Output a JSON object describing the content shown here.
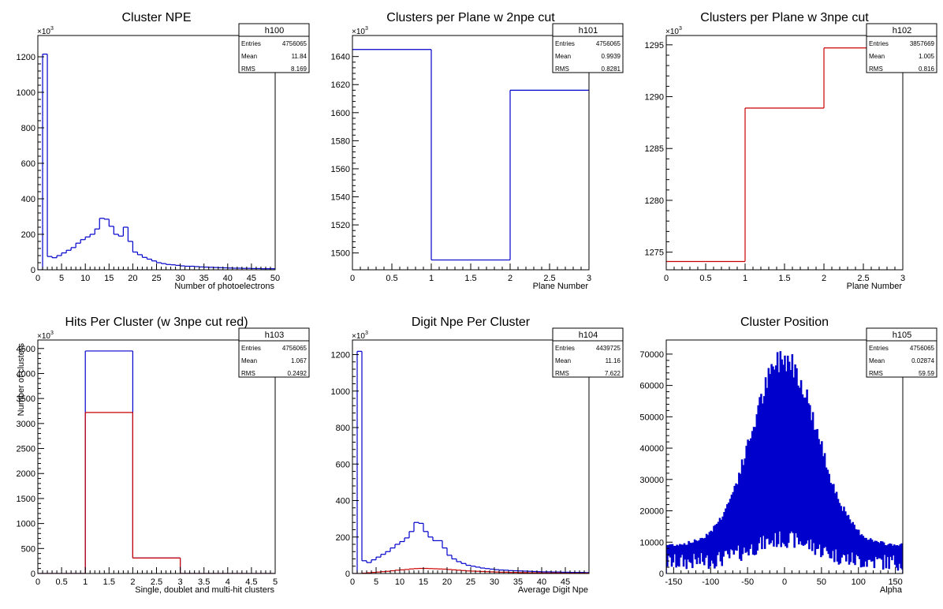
{
  "chart_data": [
    {
      "type": "bar",
      "title": "Cluster NPE",
      "xlabel": "Number of photoelectrons",
      "ylabel": "",
      "y_multiplier": "×10³",
      "xlim": [
        0,
        50
      ],
      "ylim": [
        0,
        1320
      ],
      "xticks": [
        0,
        5,
        10,
        15,
        20,
        25,
        30,
        35,
        40,
        45,
        50
      ],
      "yticks": [
        0,
        200,
        400,
        600,
        800,
        1000,
        1200
      ],
      "stats": {
        "name": "h100",
        "entries": "4756065",
        "mean": "11.84",
        "rms": "8.169"
      },
      "series": [
        {
          "color": "#0000cc",
          "bin_edges": [
            0,
            1,
            2,
            3,
            4,
            5,
            6,
            7,
            8,
            9,
            10,
            11,
            12,
            13,
            14,
            15,
            16,
            17,
            18,
            19,
            20,
            21,
            22,
            23,
            24,
            25,
            26,
            27,
            28,
            29,
            30,
            31,
            32,
            33,
            34,
            35,
            36,
            37,
            38,
            39,
            40,
            41,
            42,
            43,
            44,
            45,
            46,
            47,
            48,
            49,
            50
          ],
          "values": [
            0,
            1215,
            75,
            68,
            80,
            95,
            110,
            125,
            150,
            170,
            185,
            200,
            230,
            290,
            285,
            245,
            200,
            190,
            240,
            160,
            100,
            85,
            70,
            60,
            50,
            40,
            35,
            30,
            28,
            25,
            22,
            20,
            20,
            18,
            16,
            15,
            14,
            13,
            12,
            11,
            10,
            9,
            9,
            8,
            8,
            7,
            7,
            6,
            6,
            6
          ]
        }
      ]
    },
    {
      "type": "bar",
      "title": "Clusters per Plane w 2npe cut",
      "xlabel": "Plane Number",
      "ylabel": "",
      "y_multiplier": "×10³",
      "xlim": [
        0,
        3
      ],
      "ylim": [
        1488,
        1655
      ],
      "xticks": [
        0,
        0.5,
        1,
        1.5,
        2,
        2.5,
        3
      ],
      "yticks": [
        1500,
        1520,
        1540,
        1560,
        1580,
        1600,
        1620,
        1640
      ],
      "stats": {
        "name": "h101",
        "entries": "4756065",
        "mean": "0.9939",
        "rms": "0.8281"
      },
      "series": [
        {
          "color": "#0000cc",
          "bin_edges": [
            0,
            1,
            2,
            3
          ],
          "values": [
            1645,
            1495,
            1616
          ]
        }
      ]
    },
    {
      "type": "bar",
      "title": "Clusters per Plane w 3npe cut",
      "xlabel": "Plane Number",
      "ylabel": "",
      "y_multiplier": "×10³",
      "xlim": [
        0,
        3
      ],
      "ylim": [
        1273.3,
        1295.9
      ],
      "xticks": [
        0,
        0.5,
        1,
        1.5,
        2,
        2.5,
        3
      ],
      "yticks": [
        1275,
        1280,
        1285,
        1290,
        1295
      ],
      "stats": {
        "name": "h102",
        "entries": "3857669",
        "mean": "1.005",
        "rms": "0.816"
      },
      "series": [
        {
          "color": "#cc0000",
          "bin_edges": [
            0,
            1,
            2,
            3
          ],
          "values": [
            1274.1,
            1288.9,
            1294.7
          ]
        }
      ]
    },
    {
      "type": "bar",
      "title": "Hits Per Cluster (w 3npe cut red)",
      "xlabel": "Single, doublet and multi-hit clusters",
      "ylabel": "Number of clusters",
      "y_multiplier": "×10³",
      "xlim": [
        0,
        5
      ],
      "ylim": [
        0,
        4670
      ],
      "xticks": [
        0,
        0.5,
        1,
        1.5,
        2,
        2.5,
        3,
        3.5,
        4,
        4.5,
        5
      ],
      "yticks": [
        0,
        500,
        1000,
        1500,
        2000,
        2500,
        3000,
        3500,
        4000,
        4500
      ],
      "stats": {
        "name": "h103",
        "entries": "4756065",
        "mean": "1.067",
        "rms": "0.2492"
      },
      "series": [
        {
          "color": "#0000cc",
          "bin_edges": [
            0,
            1,
            2,
            3,
            4,
            5
          ],
          "values": [
            0,
            4450,
            310,
            0,
            0
          ]
        },
        {
          "color": "#cc0000",
          "bin_edges": [
            0,
            1,
            2,
            3,
            4,
            5
          ],
          "values": [
            0,
            3220,
            310,
            0,
            0
          ]
        }
      ]
    },
    {
      "type": "bar",
      "title": "Digit Npe Per Cluster",
      "xlabel": "Average Digit Npe",
      "ylabel": "",
      "y_multiplier": "×10³",
      "xlim": [
        0,
        50
      ],
      "ylim": [
        0,
        1280
      ],
      "xticks": [
        0,
        5,
        10,
        15,
        20,
        25,
        30,
        35,
        40,
        45,
        50
      ],
      "xticklabels_shown": [
        0,
        5,
        10,
        15,
        20,
        25,
        30,
        35,
        40,
        45
      ],
      "yticks": [
        0,
        200,
        400,
        600,
        800,
        1000,
        1200
      ],
      "stats": {
        "name": "h104",
        "entries": "4439725",
        "mean": "11.16",
        "rms": "7.622"
      },
      "series": [
        {
          "color": "#0000cc",
          "bin_edges": [
            0,
            1,
            2,
            3,
            4,
            5,
            6,
            7,
            8,
            9,
            10,
            11,
            12,
            13,
            14,
            15,
            16,
            17,
            18,
            19,
            20,
            21,
            22,
            23,
            24,
            25,
            26,
            27,
            28,
            29,
            30,
            31,
            32,
            33,
            34,
            35,
            36,
            37,
            38,
            39,
            40,
            41,
            42,
            43,
            44,
            45,
            46,
            47,
            48,
            49,
            50
          ],
          "values": [
            0,
            1218,
            70,
            60,
            75,
            90,
            105,
            120,
            140,
            160,
            175,
            195,
            230,
            280,
            275,
            230,
            200,
            180,
            180,
            140,
            100,
            80,
            65,
            55,
            45,
            40,
            35,
            30,
            27,
            24,
            21,
            19,
            18,
            16,
            15,
            14,
            13,
            12,
            11,
            10,
            9,
            9,
            8,
            8,
            7,
            7,
            6,
            6,
            6,
            5
          ]
        },
        {
          "color": "#cc0000",
          "bin_edges": [
            0,
            1,
            2,
            3,
            4,
            5,
            6,
            7,
            8,
            9,
            10,
            11,
            12,
            13,
            14,
            15,
            16,
            17,
            18,
            19,
            20,
            21,
            22,
            23,
            24,
            25,
            26,
            27,
            28,
            29,
            30,
            31,
            32,
            33,
            34,
            35,
            36,
            37,
            38,
            39,
            40,
            41,
            42,
            43,
            44,
            45,
            46,
            47,
            48,
            49,
            50
          ],
          "values": [
            0,
            0,
            2,
            4,
            6,
            8,
            10,
            12,
            15,
            18,
            20,
            22,
            25,
            27,
            28,
            28,
            27,
            26,
            25,
            24,
            22,
            20,
            18,
            16,
            14,
            13,
            12,
            11,
            10,
            9,
            8,
            7,
            7,
            6,
            6,
            5,
            5,
            4,
            4,
            4,
            3,
            3,
            3,
            3,
            2,
            2,
            2,
            2,
            2,
            2
          ]
        }
      ]
    },
    {
      "type": "bar",
      "title": "Cluster Position",
      "xlabel": "Alpha",
      "ylabel": "",
      "y_multiplier": "",
      "xlim": [
        -160,
        160
      ],
      "ylim": [
        0,
        74500
      ],
      "xticks": [
        -150,
        -100,
        -50,
        0,
        50,
        100,
        150
      ],
      "yticks": [
        0,
        10000,
        20000,
        30000,
        40000,
        50000,
        60000,
        70000
      ],
      "stats": {
        "name": "h105",
        "entries": "4756065",
        "mean": "0.02874",
        "rms": "59.59"
      },
      "series": [
        {
          "color": "#0000cc",
          "model": "gaussian_comb",
          "peak": 70000,
          "center": 0,
          "sigma": 44,
          "floor": 9000,
          "valley_ratio": 0.12
        }
      ]
    }
  ]
}
